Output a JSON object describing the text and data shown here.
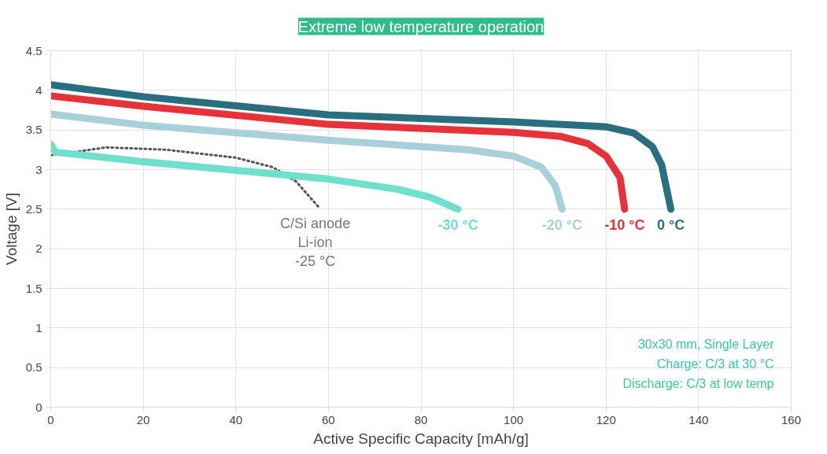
{
  "chart_data": {
    "type": "line",
    "title": "Extreme low temperature operation",
    "xlabel": "Active Specific Capacity [mAh/g]",
    "ylabel": "Voltage [V]",
    "xlim": [
      0,
      160
    ],
    "xticks": [
      0,
      20,
      40,
      60,
      80,
      100,
      120,
      140,
      160
    ],
    "ylim": [
      0,
      4.5
    ],
    "yticks": [
      0,
      0.5,
      1,
      1.5,
      2,
      2.5,
      3,
      3.5,
      4,
      4.5
    ],
    "grid": true,
    "marker": "none",
    "series": [
      {
        "name": "C/Si anode\nLi-ion\n-25 °C",
        "color": "#555555",
        "line_style": "dotted",
        "x": [
          0,
          5,
          12,
          25,
          40,
          48,
          53,
          58
        ],
        "values": [
          3.18,
          3.22,
          3.28,
          3.25,
          3.15,
          3.03,
          2.85,
          2.52
        ]
      },
      {
        "name": "-30 °C",
        "color": "#6fe0cc",
        "line_style": "solid",
        "x": [
          0,
          1,
          20,
          40,
          60,
          75,
          82,
          88
        ],
        "values": [
          3.32,
          3.22,
          3.1,
          2.99,
          2.88,
          2.75,
          2.65,
          2.5
        ]
      },
      {
        "name": "-20 °C",
        "color": "#a8d0d8",
        "line_style": "solid",
        "x": [
          0,
          20,
          60,
          90,
          100,
          106,
          109,
          110.5
        ],
        "values": [
          3.7,
          3.56,
          3.37,
          3.25,
          3.17,
          3.03,
          2.8,
          2.5
        ]
      },
      {
        "name": "-10 °C",
        "color": "#e8323a",
        "line_style": "solid",
        "x": [
          0,
          20,
          60,
          100,
          110,
          116,
          120,
          123,
          124
        ],
        "values": [
          3.93,
          3.8,
          3.57,
          3.47,
          3.42,
          3.33,
          3.17,
          2.9,
          2.5
        ]
      },
      {
        "name": "0 °C",
        "color": "#2a6f7f",
        "line_style": "solid",
        "x": [
          0,
          20,
          60,
          100,
          120,
          126,
          130,
          132,
          134
        ],
        "values": [
          4.07,
          3.92,
          3.69,
          3.6,
          3.54,
          3.46,
          3.29,
          3.06,
          2.5
        ]
      }
    ],
    "annotations": [
      "30x30 mm, Single Layer",
      "Charge: C/3 at 30 °C",
      "Discharge: C/3 at low temp"
    ]
  }
}
